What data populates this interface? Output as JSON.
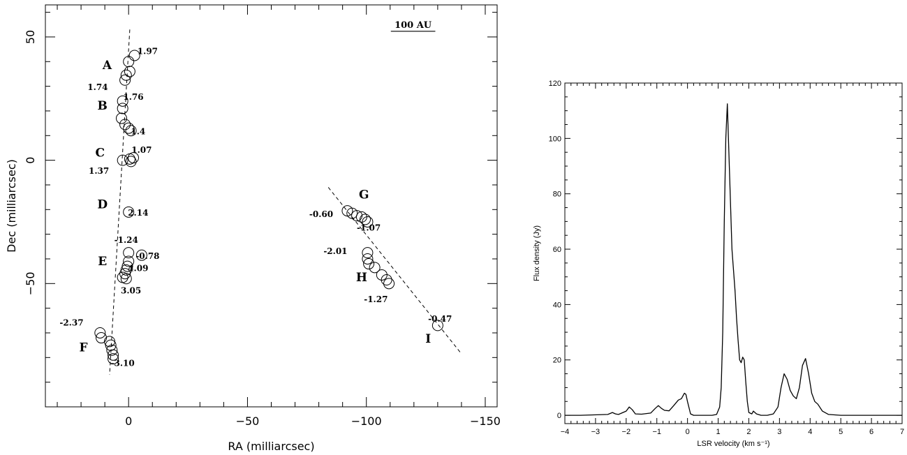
{
  "chart_data": [
    {
      "type": "scatter",
      "title": "",
      "xlabel": "RA (milliarcsec)",
      "ylabel": "Dec (milliarcsec)",
      "xlim": [
        35,
        -155
      ],
      "ylim": [
        -100,
        63
      ],
      "x_ticks": [
        "0",
        "−50",
        "−100",
        "−150"
      ],
      "y_ticks": [
        "50",
        "0",
        "−50"
      ],
      "scale_bar_label": "100 AU",
      "scale_bar_length_mas": 18.7,
      "points": [
        [
          -2.5,
          42.5
        ],
        [
          0,
          40
        ],
        [
          -0.5,
          36
        ],
        [
          1,
          34.5
        ],
        [
          1.5,
          32.5
        ],
        [
          2.5,
          24
        ],
        [
          2.5,
          21
        ],
        [
          3,
          17
        ],
        [
          1.5,
          14.5
        ],
        [
          0,
          13
        ],
        [
          -1,
          12
        ],
        [
          2.5,
          0
        ],
        [
          -0.5,
          0.5
        ],
        [
          -1,
          -0.5
        ],
        [
          -2,
          1
        ],
        [
          0,
          -21
        ],
        [
          0,
          -37.5
        ],
        [
          -5.5,
          -38.5
        ],
        [
          0,
          -41
        ],
        [
          0.5,
          -43
        ],
        [
          1,
          -44.5
        ],
        [
          1.5,
          -46
        ],
        [
          2.5,
          -47.5
        ],
        [
          1,
          -48
        ],
        [
          12,
          -70
        ],
        [
          11.5,
          -72
        ],
        [
          8,
          -73.5
        ],
        [
          7.5,
          -75
        ],
        [
          7,
          -77
        ],
        [
          6.5,
          -79
        ],
        [
          6.5,
          -80.5
        ],
        [
          -92,
          -20.5
        ],
        [
          -94,
          -21.5
        ],
        [
          -96,
          -22.5
        ],
        [
          -98,
          -23
        ],
        [
          -99.5,
          -24
        ],
        [
          -100.5,
          -25
        ],
        [
          -100.5,
          -37.5
        ],
        [
          -100.5,
          -40
        ],
        [
          -101,
          -42
        ],
        [
          -103.5,
          -43.5
        ],
        [
          -106.5,
          -46.5
        ],
        [
          -108.5,
          -48.5
        ],
        [
          -109.5,
          -50
        ],
        [
          -130,
          -67
        ]
      ],
      "group_labels": [
        {
          "text": "A",
          "x": 9,
          "y": 37
        },
        {
          "text": "B",
          "x": 11,
          "y": 20.5
        },
        {
          "text": "C",
          "x": 12,
          "y": 1.5
        },
        {
          "text": "D",
          "x": 11,
          "y": -19.5
        },
        {
          "text": "E",
          "x": 11,
          "y": -42.5
        },
        {
          "text": "F",
          "x": 19,
          "y": -77.5
        },
        {
          "text": "G",
          "x": -99,
          "y": -15.5
        },
        {
          "text": "H",
          "x": -98,
          "y": -49
        },
        {
          "text": "I",
          "x": -126,
          "y": -74
        }
      ],
      "annotations": [
        {
          "text": "1.97",
          "x": -8,
          "y": 43
        },
        {
          "text": "1.74",
          "x": 13,
          "y": 28.5
        },
        {
          "text": "1.76",
          "x": -2,
          "y": 24.5
        },
        {
          "text": "1.4",
          "x": -4,
          "y": 10.5
        },
        {
          "text": "1.07",
          "x": -5.5,
          "y": 3
        },
        {
          "text": "1.37",
          "x": 12.5,
          "y": -5.5
        },
        {
          "text": "2.14",
          "x": -4,
          "y": -22.5
        },
        {
          "text": "-1.24",
          "x": 1,
          "y": -33.5
        },
        {
          "text": "-0.78",
          "x": -8,
          "y": -40
        },
        {
          "text": "4.09",
          "x": -4,
          "y": -45
        },
        {
          "text": "3.05",
          "x": -1,
          "y": -54
        },
        {
          "text": "-2.37",
          "x": 24,
          "y": -67
        },
        {
          "text": "-3.10",
          "x": 2.5,
          "y": -83.5
        },
        {
          "text": "-0.60",
          "x": -81,
          "y": -23
        },
        {
          "text": "-1.07",
          "x": -101,
          "y": -28.5
        },
        {
          "text": "-2.01",
          "x": -87,
          "y": -38
        },
        {
          "text": "-1.27",
          "x": -104,
          "y": -57.5
        },
        {
          "text": "-0.47",
          "x": -131,
          "y": -65.5
        }
      ],
      "fit_lines": [
        [
          [
            -0.5,
            53
          ],
          [
            8,
            -87
          ]
        ],
        [
          [
            -84,
            -11
          ],
          [
            -140,
            -78.5
          ]
        ]
      ]
    },
    {
      "type": "line",
      "title": "",
      "xlabel": "LSR velocity (km s⁻¹)",
      "ylabel": "Flux density (Jy)",
      "xlim": [
        -4,
        7
      ],
      "ylim": [
        -3,
        120
      ],
      "x_ticks": [
        "−4",
        "−3",
        "−2",
        "−1",
        "0",
        "1",
        "2",
        "3",
        "4",
        "5",
        "6",
        "7"
      ],
      "y_ticks": [
        "0",
        "20",
        "40",
        "60",
        "80",
        "100",
        "120"
      ],
      "series": [
        {
          "x": [
            -4,
            -3.5,
            -2.6,
            -2.45,
            -2.35,
            -2.25,
            -2.0,
            -1.9,
            -1.8,
            -1.7,
            -1.5,
            -1.2,
            -1.05,
            -0.95,
            -0.85,
            -0.75,
            -0.6,
            -0.45,
            -0.3,
            -0.2,
            -0.1,
            -0.05,
            0.0,
            0.1,
            0.2,
            0.4,
            0.6,
            0.8,
            0.95,
            1.05,
            1.1,
            1.15,
            1.2,
            1.25,
            1.3,
            1.35,
            1.45,
            1.55,
            1.6,
            1.65,
            1.7,
            1.75,
            1.8,
            1.85,
            1.9,
            1.95,
            2.0,
            2.1,
            2.15,
            2.25,
            2.4,
            2.6,
            2.8,
            2.95,
            3.05,
            3.15,
            3.25,
            3.35,
            3.45,
            3.55,
            3.65,
            3.75,
            3.85,
            3.95,
            4.05,
            4.15,
            4.25,
            4.4,
            4.6,
            5.0,
            6.0,
            7.0
          ],
          "y": [
            0,
            0,
            0.3,
            1,
            0.5,
            0.3,
            1.5,
            3,
            2,
            0.5,
            0.4,
            0.8,
            2.5,
            3.5,
            2.5,
            1.8,
            1.6,
            3.5,
            5.5,
            6,
            8,
            7.5,
            5,
            0.5,
            0,
            0,
            0,
            0,
            0.3,
            3,
            10,
            30,
            70,
            100,
            112.5,
            95,
            60,
            45,
            35,
            27,
            20,
            19,
            21,
            20,
            12,
            5,
            1,
            0.5,
            1.5,
            0.5,
            0,
            0,
            0.5,
            3,
            10,
            15,
            13,
            9,
            7,
            6,
            10,
            18,
            20.5,
            15,
            8,
            5,
            4,
            1.5,
            0.3,
            0,
            0,
            0
          ]
        }
      ]
    }
  ]
}
